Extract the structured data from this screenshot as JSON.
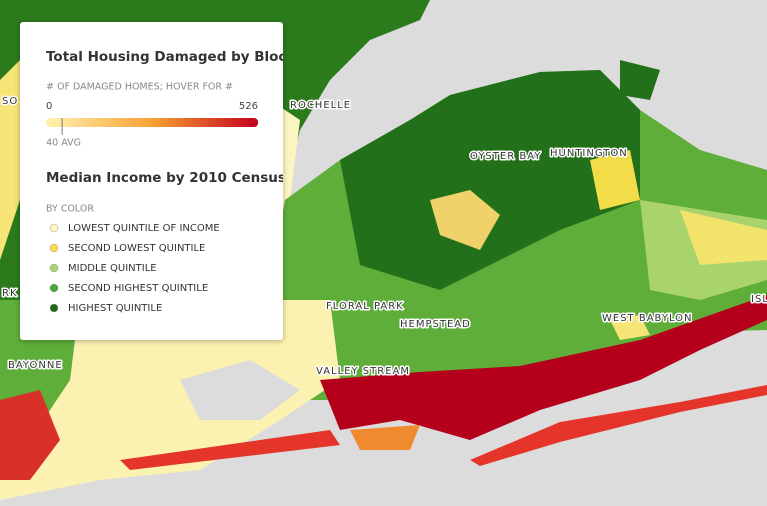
{
  "legend": {
    "damage": {
      "title": "Total Housing Damaged by Block",
      "subtitle": "# OF DAMAGED HOMES; HOVER FOR #",
      "scale": [
        0,
        526
      ],
      "average": {
        "value": 40,
        "label": "40 AVG"
      },
      "colors": [
        "#fff3b0",
        "#f7a234",
        "#c4001e"
      ]
    },
    "income": {
      "title": "Median Income by 2010 Census...",
      "subtitle": "BY COLOR",
      "items": [
        {
          "label": "LOWEST QUINTILE OF INCOME",
          "color": "#fdf6c3"
        },
        {
          "label": "SECOND LOWEST QUINTILE",
          "color": "#f2dc48"
        },
        {
          "label": "MIDDLE QUINTILE",
          "color": "#a9d36c"
        },
        {
          "label": "SECOND HIGHEST QUINTILE",
          "color": "#45a93a"
        },
        {
          "label": "HIGHEST QUINTILE",
          "color": "#1e6b14"
        }
      ]
    }
  },
  "places": [
    "ROCHELLE",
    "OYSTER BAY",
    "HUNTINGTON",
    "FLORAL PARK",
    "HEMPSTEAD",
    "WEST BABYLON",
    "VALLEY STREAM",
    "BAYONNE",
    "ISL",
    "RK",
    "SO"
  ]
}
